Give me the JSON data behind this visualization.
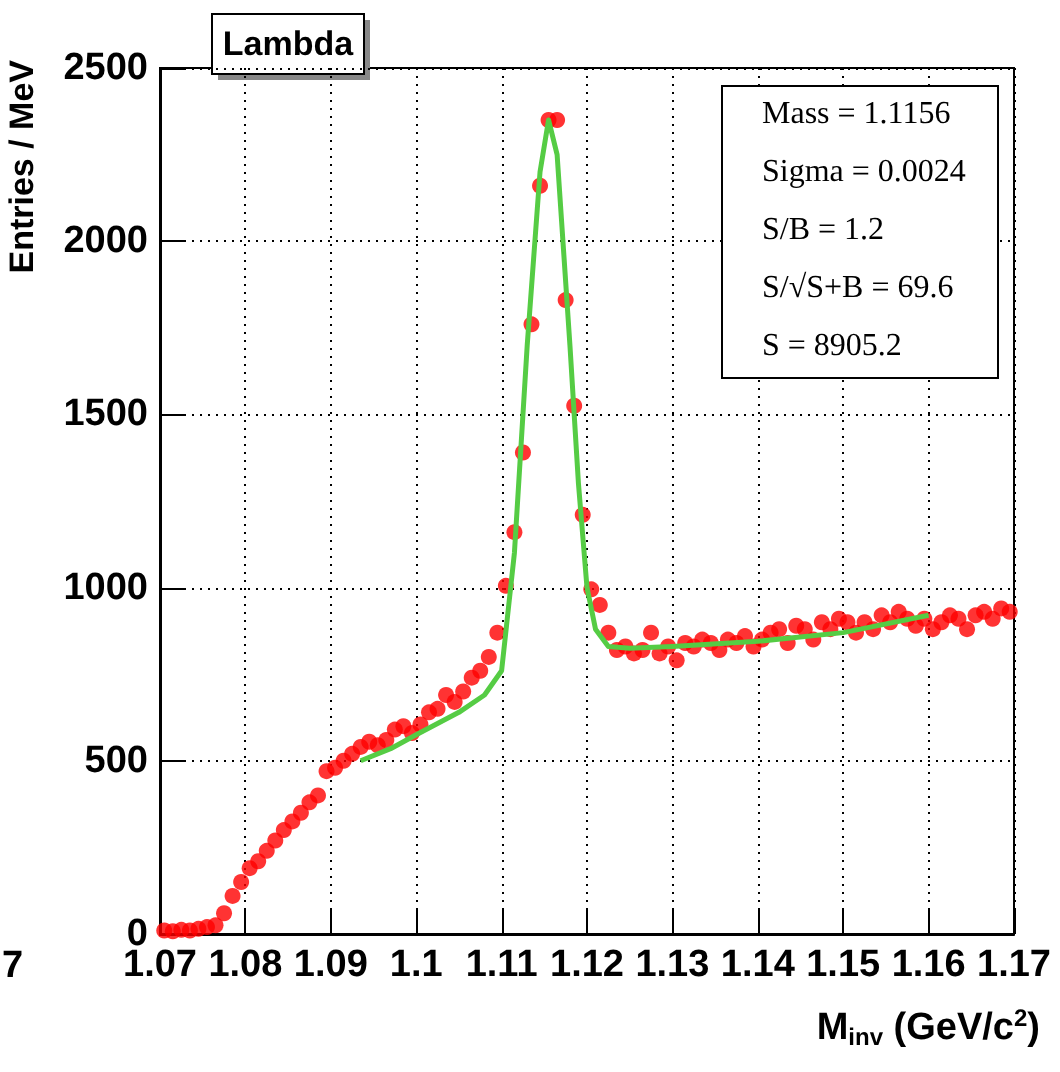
{
  "chart_data": {
    "type": "scatter",
    "title": "Lambda",
    "xlabel": "M$_{inv}$ (GeV/c$^{2}$)",
    "ylabel": "Entries / MeV",
    "annotations": [
      "Mass = 1.1156",
      "Sigma = 0.0024",
      "S/B = 1.2",
      "S/√S+B = 69.6",
      "S = 8905.2",
      "7"
    ],
    "xlim": [
      1.07,
      1.17
    ],
    "xticks": [
      1.07,
      1.08,
      1.09,
      {
        "value": 1.1,
        "label": "1.1"
      },
      1.11,
      1.12,
      1.13,
      1.14,
      1.15,
      1.16,
      1.17
    ],
    "ylim": [
      0,
      2500
    ],
    "yticks": [
      0,
      500,
      1000,
      1500,
      2000,
      2500
    ],
    "grid": true,
    "series": [
      {
        "color": "#ff0000",
        "marker": "circle",
        "x": [
          1.0705,
          1.0715,
          1.0725,
          1.0735,
          1.0745,
          1.0755,
          1.0765,
          1.0775,
          1.0785,
          1.0795,
          1.0805,
          1.0815,
          1.0825,
          1.0835,
          1.0845,
          1.0855,
          1.0865,
          1.0875,
          1.0885,
          1.0895,
          1.0905,
          1.0915,
          1.0925,
          1.0935,
          1.0945,
          1.0955,
          1.0965,
          1.0975,
          1.0985,
          1.0995,
          1.1005,
          1.1015,
          1.1025,
          1.1035,
          1.1045,
          1.1055,
          1.1065,
          1.1075,
          1.1085,
          1.1095,
          1.1105,
          1.1115,
          1.1125,
          1.1135,
          1.1145,
          1.1155,
          1.1165,
          1.1175,
          1.1185,
          1.1195,
          1.1205,
          1.1215,
          1.1225,
          1.1235,
          1.1245,
          1.1255,
          1.1265,
          1.1275,
          1.1285,
          1.1295,
          1.1305,
          1.1315,
          1.1325,
          1.1335,
          1.1345,
          1.1355,
          1.1365,
          1.1375,
          1.1385,
          1.1395,
          1.1405,
          1.1415,
          1.1425,
          1.1435,
          1.1445,
          1.1455,
          1.1465,
          1.1475,
          1.1485,
          1.1495,
          1.1505,
          1.1515,
          1.1525,
          1.1535,
          1.1545,
          1.1555,
          1.1565,
          1.1575,
          1.1585,
          1.1595,
          1.1605,
          1.1615,
          1.1625,
          1.1635,
          1.1645,
          1.1655,
          1.1665,
          1.1675,
          1.1685,
          1.1695
        ],
        "values": [
          10,
          8,
          12,
          10,
          15,
          20,
          25,
          60,
          110,
          150,
          190,
          210,
          240,
          270,
          300,
          325,
          350,
          380,
          400,
          470,
          480,
          500,
          520,
          540,
          555,
          545,
          560,
          590,
          600,
          580,
          605,
          640,
          650,
          690,
          670,
          700,
          740,
          760,
          800,
          870,
          1005,
          1160,
          1390,
          1760,
          2160,
          2350,
          2350,
          1830,
          1525,
          1210,
          995,
          950,
          870,
          820,
          830,
          810,
          820,
          870,
          810,
          830,
          790,
          840,
          830,
          850,
          840,
          820,
          850,
          840,
          860,
          830,
          850,
          870,
          880,
          840,
          890,
          880,
          850,
          900,
          880,
          910,
          900,
          870,
          900,
          880,
          920,
          900,
          930,
          910,
          890,
          910,
          880,
          900,
          920,
          910,
          880,
          920,
          930,
          910,
          940,
          930
        ]
      },
      {
        "type": "line",
        "color": "#55cc44",
        "marker": "none",
        "line_style": "solid",
        "x": [
          1.0935,
          1.097,
          1.1,
          1.105,
          1.108,
          1.11,
          1.1115,
          1.113,
          1.1145,
          1.1155,
          1.1165,
          1.118,
          1.119,
          1.12,
          1.121,
          1.1225,
          1.125,
          1.13,
          1.14,
          1.15,
          1.16
        ],
        "values": [
          500,
          535,
          575,
          640,
          690,
          760,
          1100,
          1700,
          2200,
          2350,
          2250,
          1700,
          1300,
          1000,
          880,
          830,
          825,
          830,
          845,
          870,
          920
        ]
      }
    ]
  }
}
